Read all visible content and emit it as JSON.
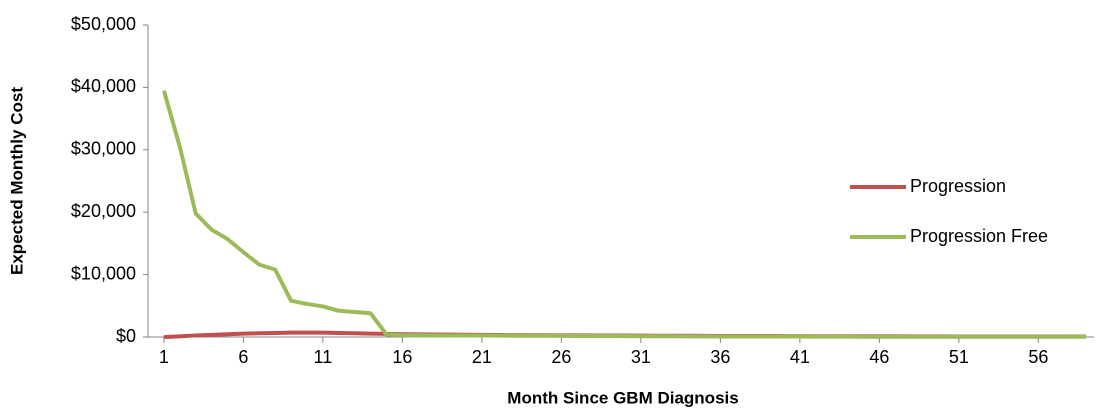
{
  "chart_data": {
    "type": "line",
    "x_label": "Month Since GBM Diagnosis",
    "y_label": "Expected Monthly Cost",
    "x": [
      1,
      2,
      3,
      4,
      5,
      6,
      7,
      8,
      9,
      10,
      11,
      12,
      13,
      14,
      15,
      16,
      17,
      18,
      19,
      20,
      21,
      22,
      23,
      24,
      25,
      26,
      27,
      28,
      29,
      30,
      31,
      32,
      33,
      34,
      35,
      36,
      37,
      38,
      39,
      40,
      41,
      42,
      43,
      44,
      45,
      46,
      47,
      48,
      49,
      50,
      51,
      52,
      53,
      54,
      55,
      56,
      57,
      58,
      59
    ],
    "xlim": [
      0,
      59.5
    ],
    "xticks": [
      1,
      6,
      11,
      16,
      21,
      26,
      31,
      36,
      41,
      46,
      51,
      56
    ],
    "ylim": [
      0,
      50000
    ],
    "yticks": [
      {
        "value": 0,
        "label": "$0"
      },
      {
        "value": 10000,
        "label": "$10,000"
      },
      {
        "value": 20000,
        "label": "$20,000"
      },
      {
        "value": 30000,
        "label": "$30,000"
      },
      {
        "value": 40000,
        "label": "$40,000"
      },
      {
        "value": 50000,
        "label": "$50,000"
      }
    ],
    "legend": "right",
    "series": [
      {
        "name": "Progression",
        "color": "#c0504d",
        "values": [
          0,
          100,
          250,
          350,
          450,
          550,
          600,
          650,
          700,
          700,
          700,
          650,
          600,
          550,
          500,
          450,
          420,
          400,
          380,
          360,
          340,
          320,
          300,
          290,
          280,
          270,
          260,
          250,
          240,
          230,
          220,
          210,
          200,
          190,
          180,
          170,
          160,
          150,
          150,
          140,
          140,
          130,
          130,
          120,
          120,
          110,
          110,
          100,
          100,
          100,
          90,
          90,
          90,
          80,
          80,
          80,
          70,
          70,
          70
        ]
      },
      {
        "name": "Progression Free",
        "color": "#9bbb59",
        "values": [
          39500,
          30500,
          19800,
          17200,
          15700,
          13600,
          11600,
          10800,
          5800,
          5300,
          4900,
          4200,
          4000,
          3800,
          400,
          300,
          280,
          260,
          250,
          240,
          230,
          220,
          210,
          200,
          190,
          180,
          170,
          160,
          150,
          140,
          130,
          120,
          110,
          100,
          100,
          90,
          90,
          80,
          80,
          70,
          70,
          60,
          60,
          60,
          50,
          50,
          50,
          50,
          40,
          40,
          40,
          40,
          30,
          30,
          30,
          30,
          30,
          30,
          30
        ]
      }
    ]
  }
}
